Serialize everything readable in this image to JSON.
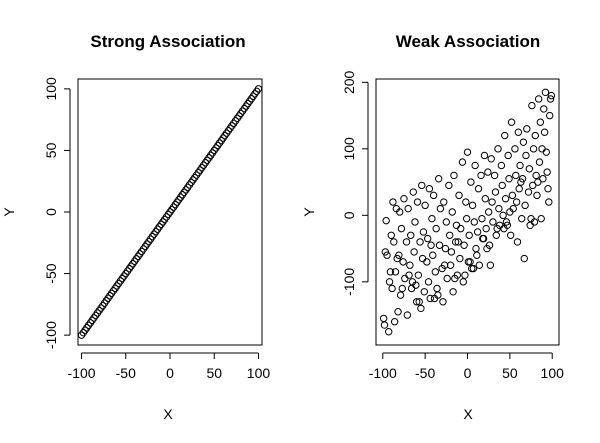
{
  "chart_data": [
    {
      "type": "scatter",
      "title": "Strong Association",
      "xlabel": "X",
      "ylabel": "Y",
      "xlim": [
        -104,
        104
      ],
      "ylim": [
        -108,
        108
      ],
      "xticks": [
        -100,
        -50,
        0,
        50,
        100
      ],
      "yticks": [
        -100,
        -50,
        0,
        50,
        100
      ],
      "xtick_labels": [
        "-100",
        "-50",
        "0",
        "50",
        "100"
      ],
      "ytick_labels": [
        "-100",
        "-50",
        "0",
        "50",
        "100"
      ],
      "marker": "open-circle",
      "grid": false,
      "series": [
        {
          "x": [
            -100,
            -98,
            -96,
            -94,
            -92,
            -90,
            -88,
            -86,
            -84,
            -82,
            -80,
            -78,
            -76,
            -74,
            -72,
            -70,
            -68,
            -66,
            -64,
            -62,
            -60,
            -58,
            -56,
            -54,
            -52,
            -50,
            -48,
            -46,
            -44,
            -42,
            -40,
            -38,
            -36,
            -34,
            -32,
            -30,
            -28,
            -26,
            -24,
            -22,
            -20,
            -18,
            -16,
            -14,
            -12,
            -10,
            -8,
            -6,
            -4,
            -2,
            0,
            2,
            4,
            6,
            8,
            10,
            12,
            14,
            16,
            18,
            20,
            22,
            24,
            26,
            28,
            30,
            32,
            34,
            36,
            38,
            40,
            42,
            44,
            46,
            48,
            50,
            52,
            54,
            56,
            58,
            60,
            62,
            64,
            66,
            68,
            70,
            72,
            74,
            76,
            78,
            80,
            82,
            84,
            86,
            88,
            90,
            92,
            94,
            96,
            98,
            100
          ],
          "y": [
            -100,
            -98,
            -96,
            -94,
            -92,
            -90,
            -88,
            -86,
            -84,
            -82,
            -80,
            -78,
            -76,
            -74,
            -72,
            -70,
            -68,
            -66,
            -64,
            -62,
            -60,
            -58,
            -56,
            -54,
            -52,
            -50,
            -48,
            -46,
            -44,
            -42,
            -40,
            -38,
            -36,
            -34,
            -32,
            -30,
            -28,
            -26,
            -24,
            -22,
            -20,
            -18,
            -16,
            -14,
            -12,
            -10,
            -8,
            -6,
            -4,
            -2,
            0,
            2,
            4,
            6,
            8,
            10,
            12,
            14,
            16,
            18,
            20,
            22,
            24,
            26,
            28,
            30,
            32,
            34,
            36,
            38,
            40,
            42,
            44,
            46,
            48,
            50,
            52,
            54,
            56,
            58,
            60,
            62,
            64,
            66,
            68,
            70,
            72,
            74,
            76,
            78,
            80,
            82,
            84,
            86,
            88,
            90,
            92,
            94,
            96,
            98,
            100
          ]
        }
      ]
    },
    {
      "type": "scatter",
      "title": "Weak Association",
      "xlabel": "X",
      "ylabel": "Y",
      "xlim": [
        -108,
        108
      ],
      "ylim": [
        -195,
        205
      ],
      "xticks": [
        -100,
        -50,
        0,
        50,
        100
      ],
      "yticks": [
        -100,
        0,
        100,
        200
      ],
      "xtick_labels": [
        "-100",
        "-50",
        "0",
        "50",
        "100"
      ],
      "ytick_labels": [
        "-100",
        "0",
        "100",
        "200"
      ],
      "marker": "open-circle",
      "grid": false,
      "series": [
        {
          "x": [
            -98,
            -96,
            -95,
            -93,
            -92,
            -90,
            -89,
            -88,
            -87,
            -86,
            -85,
            -84,
            -82,
            -81,
            -80,
            -79,
            -78,
            -76,
            -75,
            -74,
            -72,
            -71,
            -70,
            -68,
            -67,
            -66,
            -64,
            -63,
            -62,
            -60,
            -59,
            -58,
            -56,
            -55,
            -54,
            -52,
            -51,
            -50,
            -48,
            -47,
            -46,
            -45,
            -44,
            -42,
            -41,
            -40,
            -38,
            -37,
            -36,
            -34,
            -33,
            -32,
            -30,
            -29,
            -28,
            -26,
            -25,
            -24,
            -22,
            -21,
            -20,
            -18,
            -17,
            -16,
            -14,
            -13,
            -12,
            -10,
            -9,
            -8,
            -6,
            -5,
            -4,
            -2,
            -1,
            0,
            1,
            2,
            4,
            5,
            6,
            8,
            9,
            10,
            12,
            13,
            14,
            16,
            17,
            18,
            20,
            21,
            22,
            24,
            25,
            26,
            28,
            29,
            30,
            32,
            33,
            34,
            36,
            37,
            38,
            40,
            41,
            42,
            44,
            45,
            46,
            48,
            49,
            50,
            52,
            53,
            54,
            56,
            57,
            58,
            60,
            61,
            62,
            64,
            65,
            66,
            68,
            69,
            70,
            72,
            73,
            74,
            76,
            77,
            78,
            80,
            81,
            82,
            84,
            85,
            86,
            88,
            89,
            90,
            92,
            93,
            94,
            96,
            97,
            98,
            -99,
            -91,
            -83,
            -77,
            -69,
            -61,
            -53,
            -43,
            -35,
            -27,
            -19,
            -11,
            -3,
            3,
            11,
            19,
            27,
            35,
            43,
            51,
            59,
            67,
            75,
            83,
            91,
            99,
            -97,
            -65,
            -57,
            -39,
            -15,
            7,
            23,
            47,
            63,
            79,
            87,
            95
          ],
          "y": [
            -165,
            -8,
            -60,
            -175,
            -100,
            -30,
            -110,
            20,
            -40,
            -160,
            -85,
            10,
            -145,
            -60,
            5,
            -120,
            -20,
            -70,
            25,
            -95,
            -40,
            -150,
            10,
            -75,
            -30,
            -110,
            35,
            -55,
            -10,
            -130,
            20,
            -90,
            -40,
            -140,
            45,
            -25,
            -115,
            15,
            -70,
            -35,
            -100,
            40,
            -125,
            -5,
            -60,
            30,
            -85,
            -20,
            -110,
            55,
            -45,
            10,
            -80,
            -130,
            20,
            -50,
            -10,
            -95,
            45,
            -30,
            -75,
            5,
            -115,
            60,
            -40,
            -15,
            -90,
            30,
            -65,
            -20,
            80,
            -100,
            -45,
            20,
            -5,
            95,
            -70,
            -30,
            50,
            -80,
            15,
            -10,
            75,
            -50,
            -25,
            40,
            -75,
            60,
            -5,
            -35,
            90,
            25,
            -20,
            65,
            5,
            -45,
            85,
            20,
            -10,
            60,
            35,
            -30,
            100,
            10,
            -15,
            75,
            45,
            0,
            120,
            25,
            -10,
            90,
            55,
            5,
            140,
            30,
            10,
            100,
            60,
            20,
            125,
            40,
            75,
            -5,
            55,
            110,
            15,
            90,
            130,
            35,
            70,
            -15,
            165,
            45,
            100,
            120,
            60,
            30,
            175,
            80,
            140,
            100,
            55,
            160,
            185,
            95,
            65,
            20,
            150,
            175,
            -155,
            -85,
            -65,
            -110,
            -90,
            -105,
            -65,
            -45,
            -120,
            -75,
            -55,
            -40,
            -90,
            -70,
            -60,
            -35,
            -75,
            -20,
            -20,
            -30,
            -40,
            -65,
            -5,
            50,
            125,
            180,
            -55,
            -100,
            -130,
            -125,
            -95,
            -80,
            -50,
            -15,
            50,
            -10,
            -5,
            40
          ]
        }
      ]
    }
  ]
}
